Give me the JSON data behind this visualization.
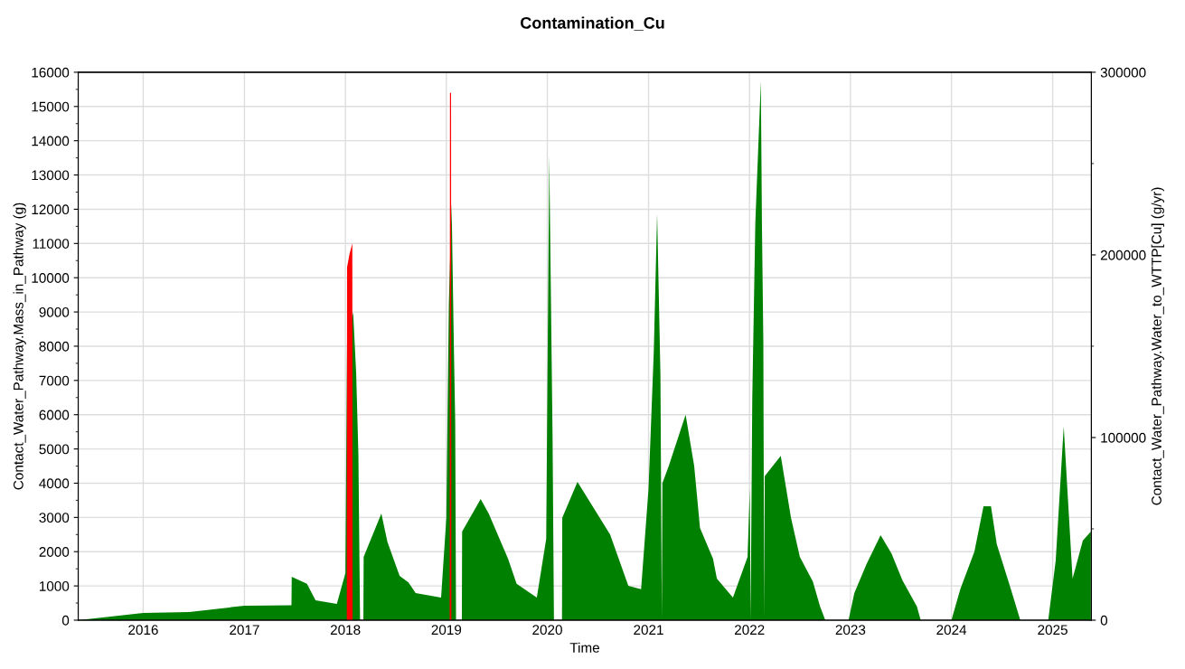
{
  "chart_data": {
    "type": "area",
    "title": "Contamination_Cu",
    "xlabel": "Time",
    "ylabel": "Contact_Water_Pathway.Mass_in_Pathway (g)",
    "y2label": "Contact_Water_Pathway.Water_to_WTTP[Cu] (g/yr)",
    "xlim": [
      "2015-05-11",
      "2025-05-21"
    ],
    "xticks": [
      "2016",
      "2017",
      "2018",
      "2019",
      "2020",
      "2021",
      "2022",
      "2023",
      "2024",
      "2025"
    ],
    "ylim": [
      0,
      16000
    ],
    "yticks": [
      0,
      1000,
      2000,
      3000,
      4000,
      5000,
      6000,
      7000,
      8000,
      9000,
      10000,
      11000,
      12000,
      13000,
      14000,
      15000,
      16000
    ],
    "y2lim": [
      0,
      300000
    ],
    "y2ticks": [
      0,
      100000,
      200000,
      300000
    ],
    "grid": true,
    "series": [
      {
        "color": "#ff0000",
        "x": [
          "2015-05-11",
          "2018-01-06",
          "2018-01-07",
          "2018-01-16",
          "2018-01-26",
          "2018-01-27",
          "2019-01-13",
          "2019-01-14",
          "2019-01-18",
          "2019-01-19",
          "2025-05-21"
        ],
        "values": [
          0,
          0,
          10300,
          10700,
          11000,
          0,
          0,
          15400,
          15400,
          0,
          0
        ]
      },
      {
        "axis": "y2",
        "color": "#008000",
        "x": [
          "2015-05-11",
          "2016-01-01",
          "2016-06-15",
          "2017-01-01",
          "2017-06-20",
          "2017-06-21",
          "2017-08-15",
          "2017-09-15",
          "2017-12-01",
          "2018-01-01",
          "2018-01-07",
          "2018-01-29",
          "2018-02-09",
          "2018-02-17",
          "2018-02-23",
          "2018-03-07",
          "2018-03-08",
          "2018-05-11",
          "2018-06-02",
          "2018-07-16",
          "2018-08-17",
          "2018-09-12",
          "2018-12-13",
          "2019-01-01",
          "2019-01-10",
          "2019-01-20",
          "2019-01-28",
          "2019-02-02",
          "2019-02-05",
          "2019-02-26",
          "2019-02-27",
          "2019-05-05",
          "2019-06-03",
          "2019-08-12",
          "2019-09-12",
          "2019-11-24",
          "2019-12-28",
          "2020-01-08",
          "2020-01-20",
          "2020-01-25",
          "2020-02-23",
          "2020-02-24",
          "2020-04-19",
          "2020-08-15",
          "2020-10-20",
          "2020-12-05",
          "2021-01-01",
          "2021-01-20",
          "2021-02-01",
          "2021-02-13",
          "2021-02-18",
          "2021-02-20",
          "2021-03-15",
          "2021-05-15",
          "2021-06-15",
          "2021-07-06",
          "2021-08-22",
          "2021-09-05",
          "2021-11-02",
          "2021-12-25",
          "2022-01-02",
          "2022-01-05",
          "2022-01-11",
          "2022-01-22",
          "2022-02-11",
          "2022-02-15",
          "2022-02-20",
          "2022-02-23",
          "2022-02-25",
          "2022-04-24",
          "2022-05-31",
          "2022-07-02",
          "2022-08-18",
          "2022-09-13",
          "2022-10-02",
          "2022-12-25",
          "2023-01-15",
          "2023-02-28",
          "2023-04-20",
          "2023-05-29",
          "2023-07-08",
          "2023-08-29",
          "2023-09-12",
          "2024-01-01",
          "2024-02-02",
          "2024-03-24",
          "2024-04-26",
          "2024-05-23",
          "2024-06-13",
          "2024-08-03",
          "2024-09-06",
          "2024-12-16",
          "2025-01-12",
          "2025-02-10",
          "2025-03-14",
          "2025-04-20",
          "2025-05-19"
        ],
        "values": [
          0,
          4000,
          4500,
          7900,
          8100,
          23800,
          19900,
          10900,
          8900,
          25700,
          152000,
          168500,
          135000,
          90600,
          0,
          0,
          34700,
          58400,
          42800,
          24200,
          20600,
          14800,
          12400,
          56000,
          173000,
          228000,
          150600,
          108500,
          0,
          0,
          48500,
          66300,
          58400,
          33700,
          19900,
          12400,
          44600,
          254400,
          100000,
          0,
          0,
          56000,
          75700,
          46900,
          18800,
          16900,
          72000,
          147500,
          222800,
          134100,
          0,
          75000,
          84400,
          112500,
          84400,
          50500,
          33700,
          22700,
          12400,
          34700,
          72000,
          0,
          121800,
          217500,
          295300,
          215900,
          152500,
          0,
          78800,
          90000,
          56000,
          34700,
          21200,
          7500,
          0,
          0,
          14800,
          30700,
          46500,
          36600,
          21800,
          7500,
          0,
          0,
          16900,
          37500,
          62400,
          62400,
          41600,
          16900,
          0,
          0,
          32600,
          106000,
          22700,
          43500,
          48500
        ]
      }
    ]
  }
}
